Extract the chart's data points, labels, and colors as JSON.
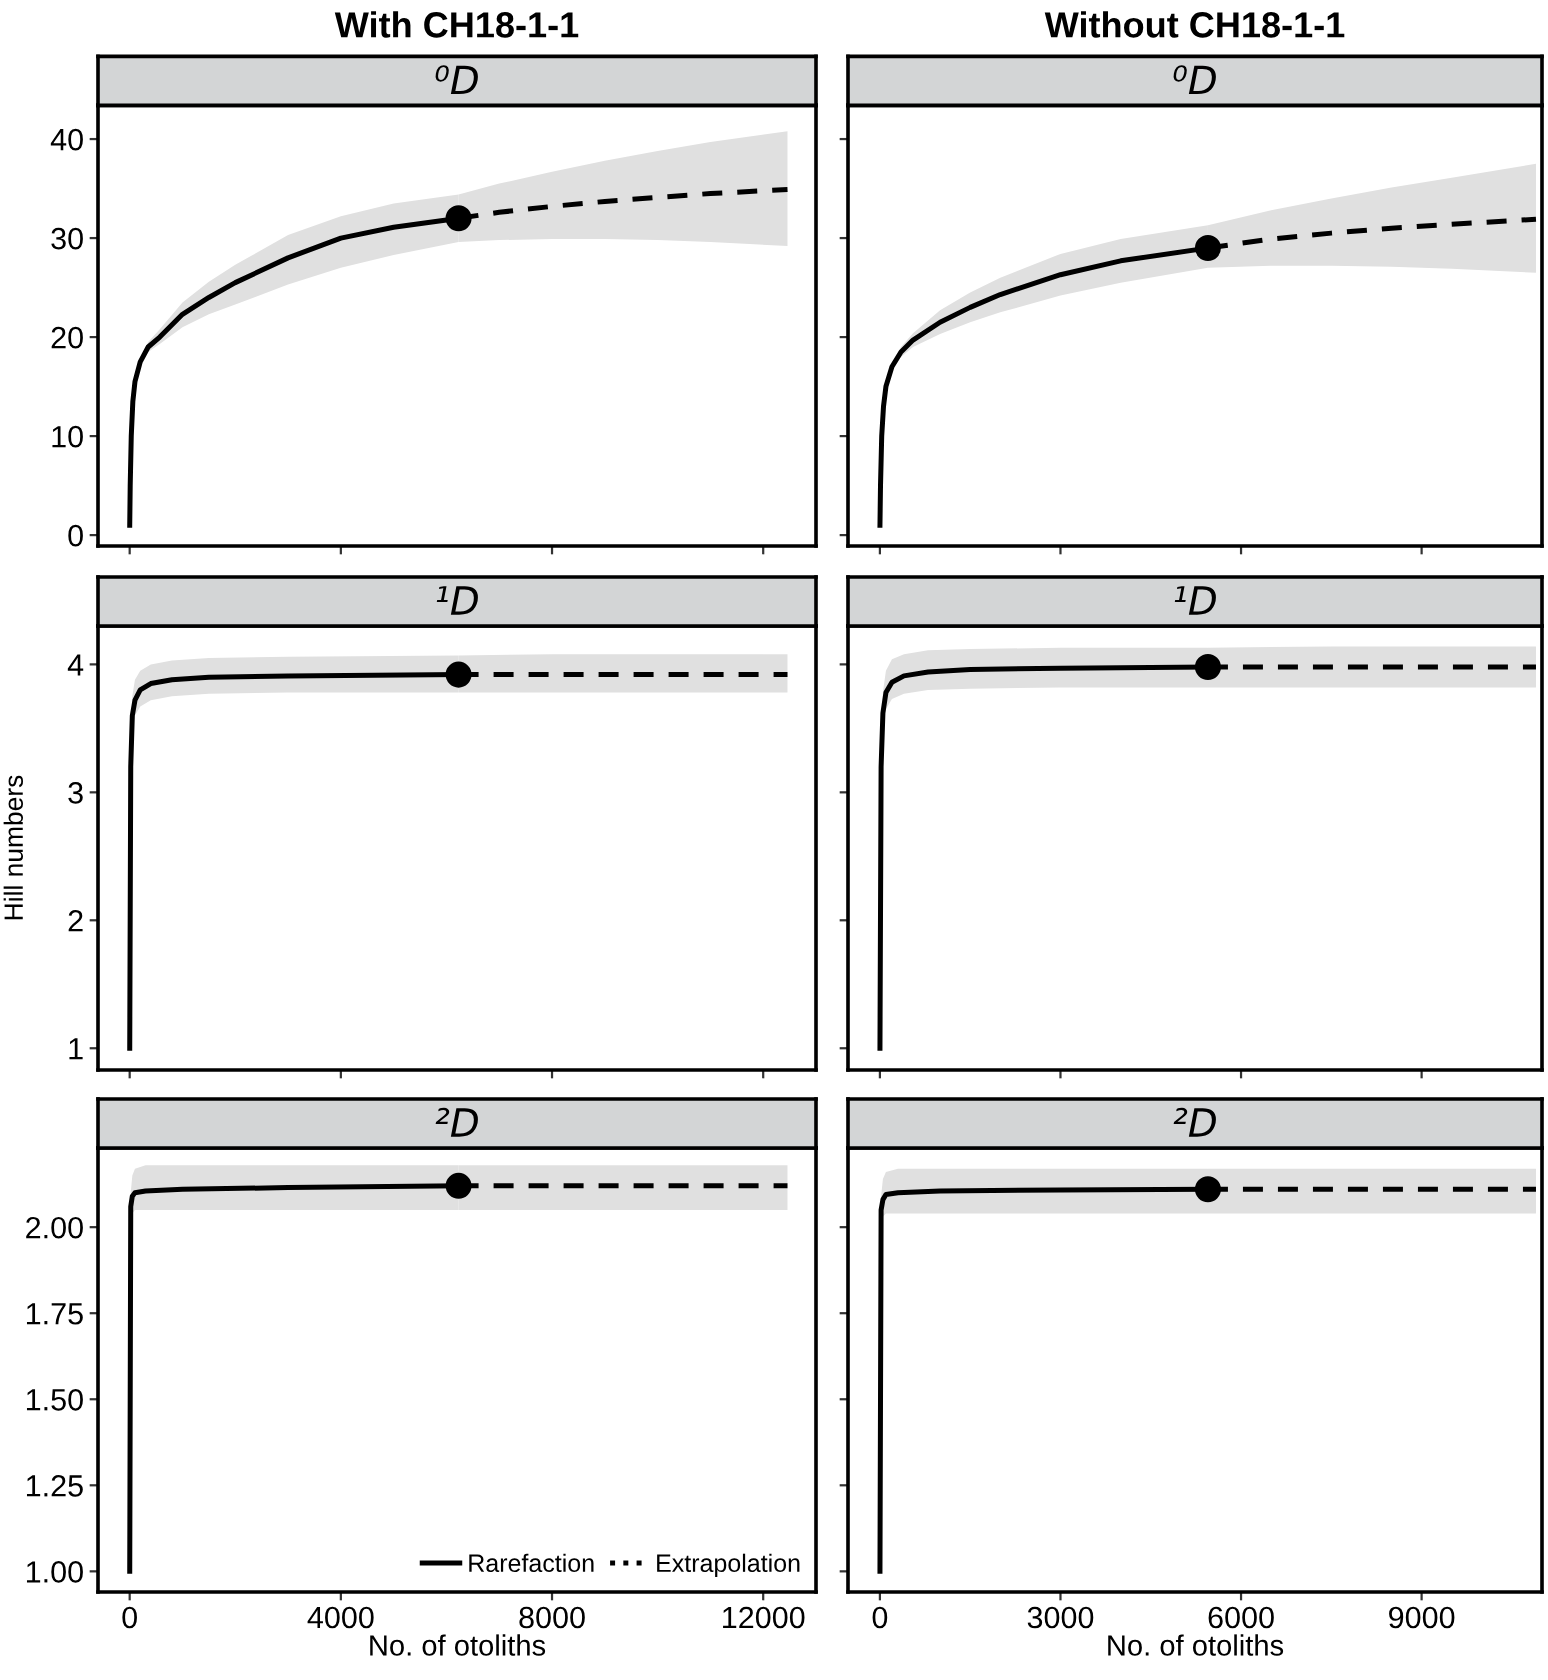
{
  "chart_data": [
    {
      "type": "line",
      "title": "With CH18-1-1",
      "subtitle": "⁰D",
      "xlim": [
        -600,
        13000
      ],
      "xticks": [
        0,
        4000,
        8000,
        12000
      ],
      "ylim": [
        -1.1,
        43.4
      ],
      "yticks": [
        0,
        10,
        20,
        30,
        40
      ],
      "tick_labels": "y",
      "grid": false,
      "legend": false,
      "series": [
        {
          "type": "line",
          "color": "#000000",
          "line_style": "solid",
          "x": [
            1,
            10,
            30,
            60,
            100,
            200,
            350,
            570,
            1000,
            1500,
            2000,
            3000,
            4000,
            5000,
            6230
          ],
          "values": [
            1,
            5,
            10,
            13.5,
            15.5,
            17.5,
            19,
            20,
            22.3,
            24,
            25.5,
            28,
            30,
            31.1,
            32
          ],
          "lower": [
            1,
            5,
            10,
            13.5,
            15.4,
            17.2,
            18.5,
            19.3,
            21,
            22.3,
            23.3,
            25.3,
            27,
            28.3,
            29.6
          ],
          "upper": [
            1,
            5,
            10,
            13.5,
            15.6,
            17.8,
            19.5,
            20.8,
            23.5,
            25.6,
            27.3,
            30.3,
            32.2,
            33.5,
            34.4
          ]
        },
        {
          "type": "line",
          "color": "#000000",
          "line_style": "dashed",
          "x": [
            6230,
            7000,
            8000,
            9000,
            10000,
            11000,
            12460
          ],
          "values": [
            32,
            32.6,
            33.2,
            33.7,
            34.1,
            34.5,
            34.9
          ],
          "lower": [
            29.6,
            29.8,
            29.9,
            29.9,
            29.8,
            29.6,
            29.2
          ],
          "upper": [
            34.4,
            35.5,
            36.7,
            37.8,
            38.8,
            39.7,
            40.8
          ]
        },
        {
          "type": "scatter",
          "color": "#000000",
          "marker": "circle",
          "x": [
            6230
          ],
          "values": [
            32
          ]
        }
      ]
    },
    {
      "type": "line",
      "title": "Without CH18-1-1",
      "subtitle": "⁰D",
      "xlim": [
        -530,
        11000
      ],
      "xticks": [
        0,
        3000,
        6000,
        9000
      ],
      "ylim": [
        -1.1,
        43.4
      ],
      "yticks": [
        0,
        10,
        20,
        30,
        40
      ],
      "tick_labels": false,
      "grid": false,
      "legend": false,
      "series": [
        {
          "type": "line",
          "color": "#000000",
          "line_style": "solid",
          "x": [
            1,
            10,
            30,
            60,
            100,
            200,
            350,
            550,
            1000,
            1500,
            2000,
            3000,
            4000,
            5450
          ],
          "values": [
            1,
            5,
            10,
            13,
            15,
            17,
            18.5,
            19.7,
            21.5,
            23,
            24.3,
            26.3,
            27.7,
            29
          ],
          "lower": [
            1,
            5,
            10,
            13,
            14.9,
            16.7,
            18,
            19,
            20.3,
            21.5,
            22.5,
            24.2,
            25.5,
            27
          ],
          "upper": [
            1,
            5,
            10,
            13,
            15.1,
            17.3,
            19,
            20.4,
            22.7,
            24.5,
            26,
            28.4,
            29.9,
            31.3
          ]
        },
        {
          "type": "line",
          "color": "#000000",
          "line_style": "dashed",
          "x": [
            5450,
            6500,
            7500,
            8500,
            9500,
            10900
          ],
          "values": [
            29,
            29.9,
            30.5,
            31,
            31.4,
            31.9
          ],
          "lower": [
            27,
            27.2,
            27.2,
            27.1,
            26.9,
            26.5
          ],
          "upper": [
            31.3,
            32.8,
            34,
            35.1,
            36.1,
            37.5
          ]
        },
        {
          "type": "scatter",
          "color": "#000000",
          "marker": "circle",
          "x": [
            5450
          ],
          "values": [
            29
          ]
        }
      ]
    },
    {
      "type": "line",
      "subtitle": "¹D",
      "ylabel": "Hill numbers",
      "xlim": [
        -600,
        13000
      ],
      "xticks": [
        0,
        4000,
        8000,
        12000
      ],
      "ylim": [
        0.83,
        4.3
      ],
      "yticks": [
        1,
        2,
        3,
        4
      ],
      "tick_labels": "y",
      "grid": false,
      "legend": false,
      "series": [
        {
          "type": "line",
          "color": "#000000",
          "line_style": "solid",
          "x": [
            1,
            20,
            50,
            100,
            200,
            400,
            800,
            1500,
            3000,
            6230
          ],
          "values": [
            1,
            3.2,
            3.6,
            3.72,
            3.8,
            3.85,
            3.88,
            3.9,
            3.91,
            3.92
          ],
          "lower": [
            1,
            3.2,
            3.5,
            3.6,
            3.67,
            3.72,
            3.75,
            3.77,
            3.78,
            3.78
          ],
          "upper": [
            1,
            3.2,
            3.75,
            3.88,
            3.95,
            4.0,
            4.03,
            4.05,
            4.06,
            4.07
          ]
        },
        {
          "type": "line",
          "color": "#000000",
          "line_style": "dashed",
          "x": [
            6230,
            8000,
            10000,
            12460
          ],
          "values": [
            3.92,
            3.92,
            3.92,
            3.92
          ],
          "lower": [
            3.78,
            3.78,
            3.78,
            3.78
          ],
          "upper": [
            4.07,
            4.08,
            4.08,
            4.08
          ]
        },
        {
          "type": "scatter",
          "color": "#000000",
          "marker": "circle",
          "x": [
            6230
          ],
          "values": [
            3.92
          ]
        }
      ]
    },
    {
      "type": "line",
      "subtitle": "¹D",
      "xlim": [
        -530,
        11000
      ],
      "xticks": [
        0,
        3000,
        6000,
        9000
      ],
      "ylim": [
        0.83,
        4.3
      ],
      "yticks": [
        1,
        2,
        3,
        4
      ],
      "tick_labels": false,
      "grid": false,
      "legend": false,
      "series": [
        {
          "type": "line",
          "color": "#000000",
          "line_style": "solid",
          "x": [
            1,
            20,
            50,
            100,
            200,
            400,
            800,
            1500,
            3000,
            5450
          ],
          "values": [
            1,
            3.2,
            3.62,
            3.78,
            3.86,
            3.91,
            3.94,
            3.96,
            3.97,
            3.98
          ],
          "lower": [
            1,
            3.2,
            3.5,
            3.65,
            3.73,
            3.77,
            3.8,
            3.81,
            3.82,
            3.82
          ],
          "upper": [
            1,
            3.2,
            3.78,
            3.95,
            4.04,
            4.08,
            4.11,
            4.12,
            4.13,
            4.13
          ]
        },
        {
          "type": "line",
          "color": "#000000",
          "line_style": "dashed",
          "x": [
            5450,
            7500,
            9000,
            10900
          ],
          "values": [
            3.98,
            3.98,
            3.98,
            3.98
          ],
          "lower": [
            3.82,
            3.82,
            3.82,
            3.82
          ],
          "upper": [
            4.13,
            4.14,
            4.14,
            4.14
          ]
        },
        {
          "type": "scatter",
          "color": "#000000",
          "marker": "circle",
          "x": [
            5450
          ],
          "values": [
            3.98
          ]
        }
      ]
    },
    {
      "type": "line",
      "subtitle": "²D",
      "xlabel": "No. of otoliths",
      "xlim": [
        -600,
        13000
      ],
      "xticks": [
        0,
        4000,
        8000,
        12000
      ],
      "ylim": [
        0.94,
        2.23
      ],
      "yticks": [
        {
          "value": 1,
          "label": "1.00"
        },
        {
          "value": 1.25,
          "label": "1.25"
        },
        {
          "value": 1.5,
          "label": "1.50"
        },
        {
          "value": 1.75,
          "label": "1.75"
        },
        {
          "value": 2,
          "label": "2.00"
        }
      ],
      "grid": false,
      "legend": "bottom right",
      "series": [
        {
          "name": "Rarefaction",
          "type": "line",
          "color": "#000000",
          "line_style": "solid",
          "x": [
            1,
            20,
            50,
            100,
            300,
            1000,
            3000,
            6230
          ],
          "values": [
            1,
            2.06,
            2.09,
            2.1,
            2.105,
            2.11,
            2.115,
            2.12
          ],
          "lower": [
            1,
            2.03,
            2.04,
            2.05,
            2.05,
            2.05,
            2.05,
            2.05
          ],
          "upper": [
            1,
            2.1,
            2.15,
            2.17,
            2.18,
            2.18,
            2.18,
            2.18
          ]
        },
        {
          "name": "Extrapolation",
          "type": "line",
          "color": "#000000",
          "line_style": "dashed",
          "x": [
            6230,
            8000,
            10000,
            12460
          ],
          "values": [
            2.12,
            2.12,
            2.12,
            2.12
          ],
          "lower": [
            2.05,
            2.05,
            2.05,
            2.05
          ],
          "upper": [
            2.18,
            2.18,
            2.18,
            2.18
          ]
        },
        {
          "type": "scatter",
          "color": "#000000",
          "marker": "circle",
          "x": [
            6230
          ],
          "values": [
            2.12
          ]
        }
      ]
    },
    {
      "type": "line",
      "subtitle": "²D",
      "xlabel": "No. of otoliths",
      "xlim": [
        -530,
        11000
      ],
      "xticks": [
        0,
        3000,
        6000,
        9000
      ],
      "ylim": [
        0.94,
        2.23
      ],
      "yticks": [
        1,
        1.25,
        1.5,
        1.75,
        2
      ],
      "tick_labels": "x",
      "grid": false,
      "legend": false,
      "series": [
        {
          "type": "line",
          "color": "#000000",
          "line_style": "solid",
          "x": [
            1,
            20,
            50,
            100,
            300,
            1000,
            3000,
            5450
          ],
          "values": [
            1,
            2.05,
            2.08,
            2.095,
            2.1,
            2.105,
            2.108,
            2.11
          ],
          "lower": [
            1,
            2.02,
            2.03,
            2.04,
            2.04,
            2.04,
            2.04,
            2.04
          ],
          "upper": [
            1,
            2.09,
            2.14,
            2.16,
            2.17,
            2.17,
            2.17,
            2.17
          ]
        },
        {
          "type": "line",
          "color": "#000000",
          "line_style": "dashed",
          "x": [
            5450,
            7500,
            9000,
            10900
          ],
          "values": [
            2.11,
            2.11,
            2.11,
            2.11
          ],
          "lower": [
            2.04,
            2.04,
            2.04,
            2.04
          ],
          "upper": [
            2.17,
            2.17,
            2.17,
            2.17
          ]
        },
        {
          "type": "scatter",
          "color": "#000000",
          "marker": "circle",
          "x": [
            5450
          ],
          "values": [
            2.11
          ]
        }
      ]
    }
  ]
}
